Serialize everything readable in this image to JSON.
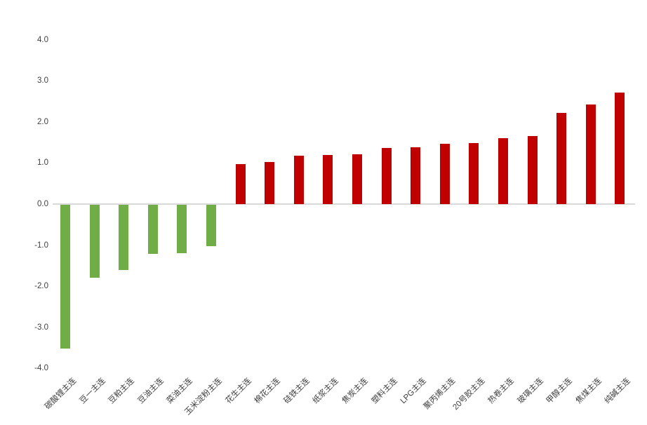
{
  "chart_data": {
    "type": "bar",
    "title": "",
    "xlabel": "",
    "ylabel": "",
    "categories": [
      "碳酸锂主连",
      "豆一主连",
      "豆粕主连",
      "豆油主连",
      "菜油主连",
      "玉米淀粉主连",
      "花生主连",
      "棉花主连",
      "硅铁主连",
      "纸浆主连",
      "焦炭主连",
      "塑料主连",
      "LPG主连",
      "聚丙烯主连",
      "20号胶主连",
      "热卷主连",
      "玻璃主连",
      "甲醇主连",
      "焦煤主连",
      "纯碱主连"
    ],
    "values": [
      -3.5,
      -1.77,
      -1.58,
      -1.19,
      -1.17,
      -1.01,
      0.97,
      1.02,
      1.17,
      1.2,
      1.22,
      1.36,
      1.38,
      1.46,
      1.49,
      1.61,
      1.65,
      2.21,
      2.43,
      2.72
    ],
    "ylim": [
      -4.0,
      4.0
    ],
    "y_tick_step": 1.0,
    "y_ticks": [
      "4.0",
      "3.0",
      "2.0",
      "1.0",
      "0.0",
      "-1.0",
      "-2.0",
      "-3.0",
      "-4.0"
    ],
    "grid": false,
    "legend_position": "none",
    "colors": {
      "positive_bar": "#c00000",
      "negative_bar": "#70ad47",
      "axis_line": "#d9d9d9",
      "tick_text": "#404040"
    }
  }
}
